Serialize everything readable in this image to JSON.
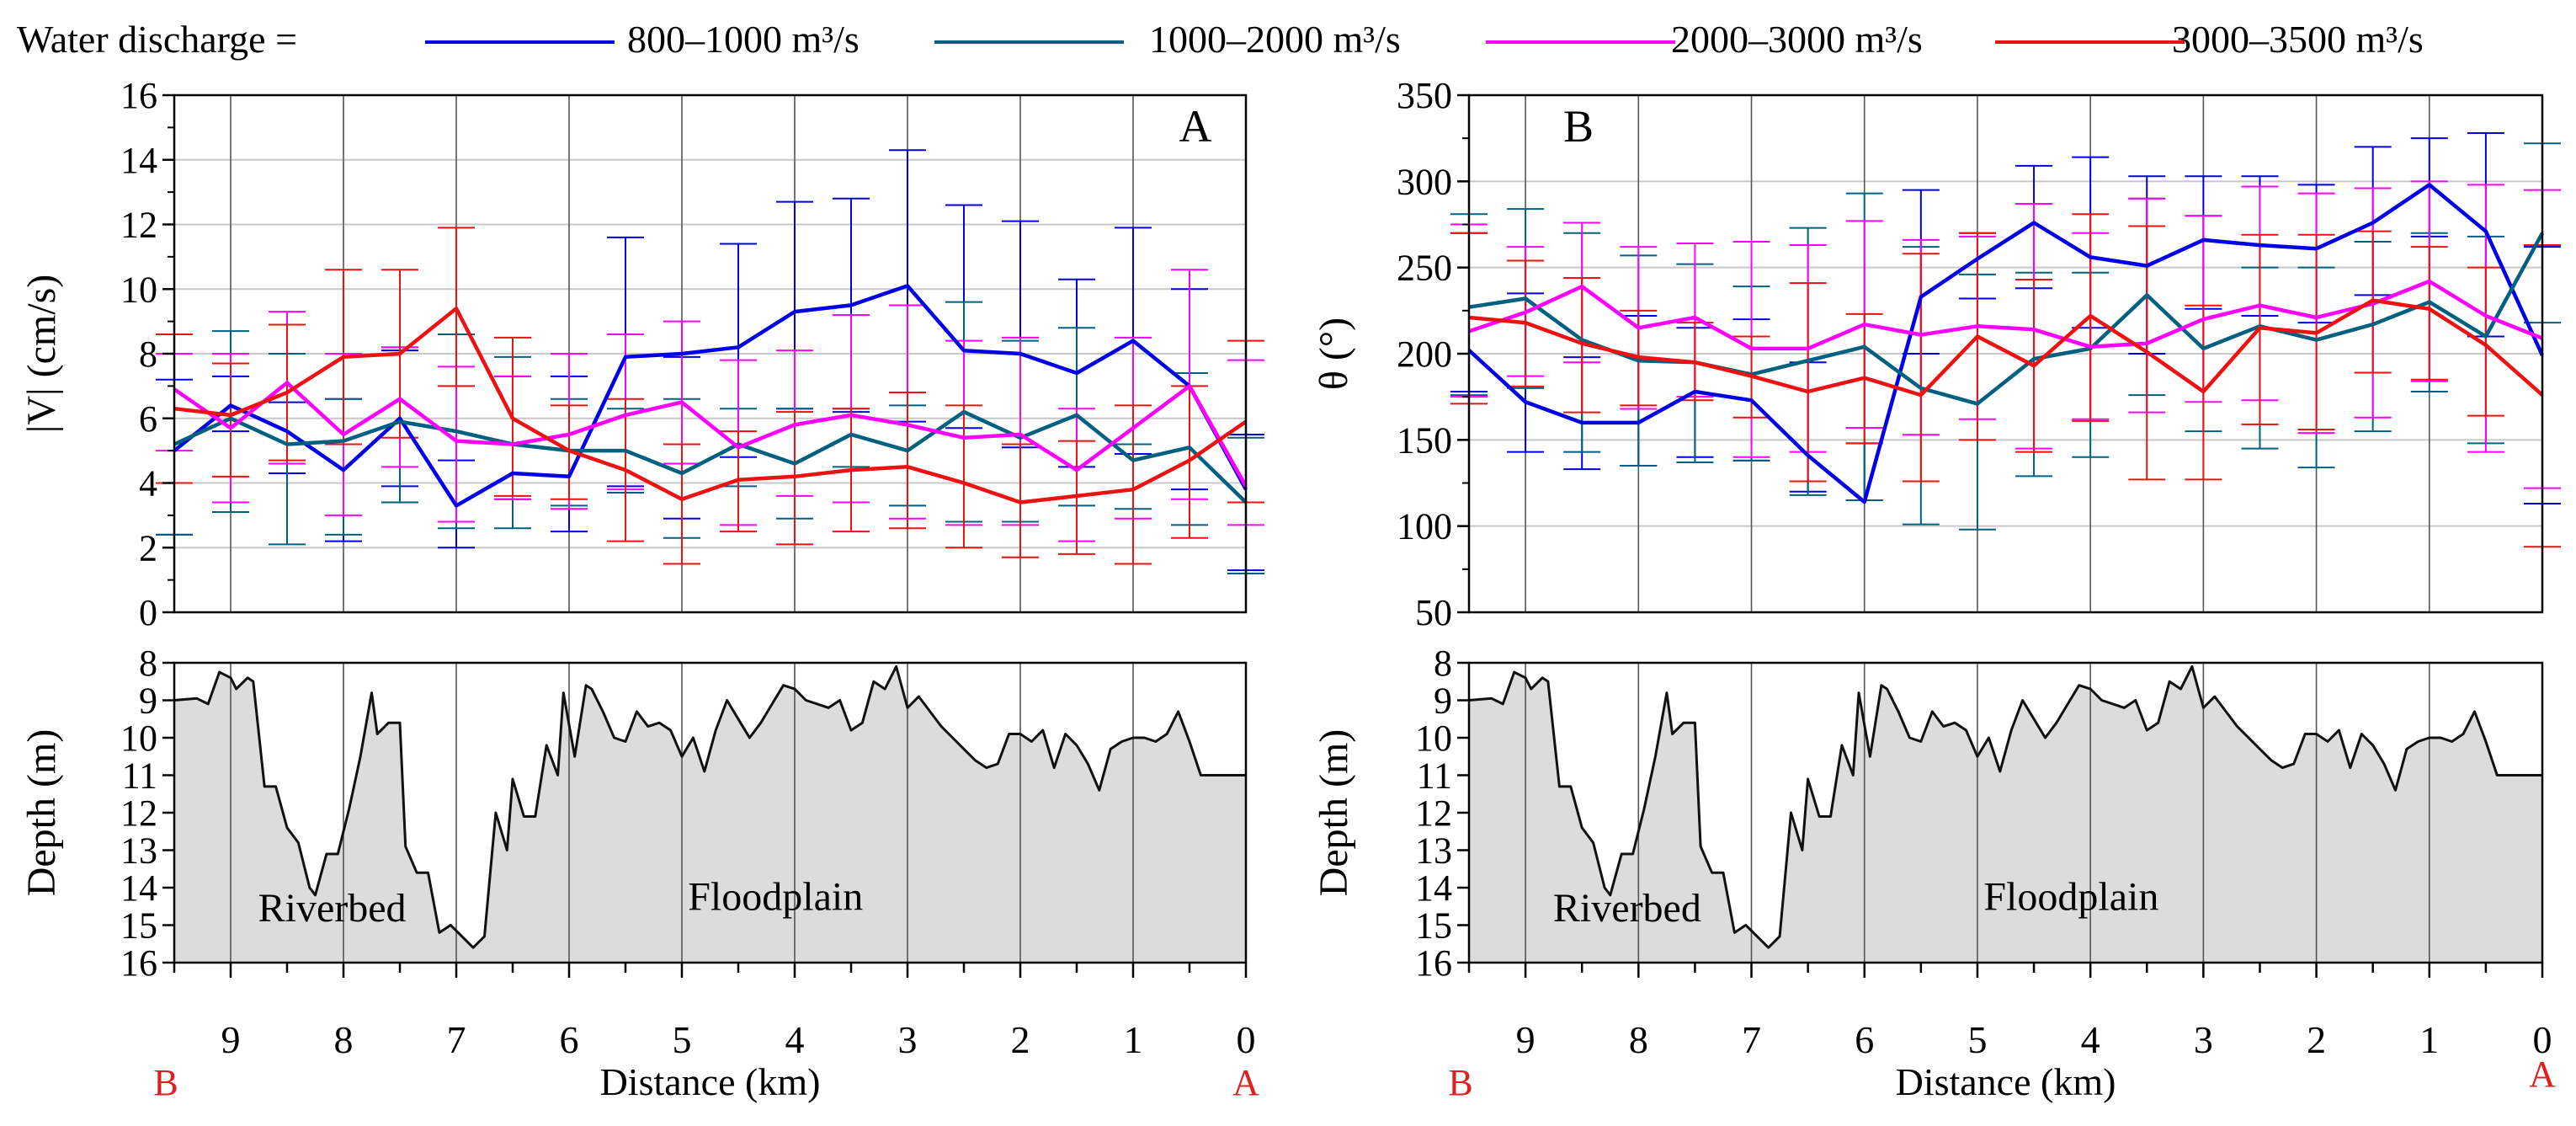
{
  "legend": {
    "prefix": "Water discharge  =",
    "entries": [
      {
        "label": "800–1000 m³/s",
        "color": "#0000e6"
      },
      {
        "label": "1000–2000 m³/s",
        "color": "#006080"
      },
      {
        "label": "2000–3000 m³/s",
        "color": "#ff00ff"
      },
      {
        "label": "3000–3500 m³/s",
        "color": "#ee1111"
      }
    ]
  },
  "chart_data": [
    {
      "type": "line",
      "panel_label": "A",
      "title": "",
      "xlabel": "",
      "ylabel": "|V| (cm/s)",
      "xlim": [
        9.5,
        0
      ],
      "ylim": [
        0,
        16
      ],
      "yticks": [
        "0",
        "2",
        "4",
        "6",
        "8",
        "10",
        "12",
        "14",
        "16"
      ],
      "x": [
        9.5,
        9.0,
        8.5,
        8.0,
        7.5,
        7.0,
        6.5,
        6.0,
        5.5,
        5.0,
        4.5,
        4.0,
        3.5,
        3.0,
        2.5,
        2.0,
        1.5,
        1.0,
        0.5,
        0.0
      ],
      "error_bars": true,
      "series": [
        {
          "name": "800–1000 m³/s",
          "color": "#0000e6",
          "values": [
            5.0,
            6.4,
            5.6,
            4.4,
            6.0,
            3.3,
            4.3,
            4.2,
            7.9,
            8.0,
            8.2,
            9.3,
            9.5,
            10.1,
            8.1,
            8.0,
            7.4,
            8.4,
            7.0,
            3.8
          ],
          "upper": [
            7.2,
            7.3,
            6.5,
            6.6,
            8.1,
            4.7,
            7.3,
            7.3,
            11.6,
            7.9,
            11.4,
            12.7,
            12.8,
            14.3,
            12.6,
            12.1,
            10.3,
            11.9,
            10.0,
            5.5
          ],
          "lower": [
            2.4,
            5.6,
            4.3,
            2.2,
            3.9,
            2.0,
            3.5,
            2.5,
            3.9,
            2.9,
            4.8,
            6.3,
            6.2,
            5.9,
            5.7,
            5.1,
            4.5,
            4.9,
            3.8,
            1.3
          ]
        },
        {
          "name": "1000–2000 m³/s",
          "color": "#006080",
          "values": [
            5.2,
            6.0,
            5.2,
            5.3,
            5.9,
            5.6,
            5.2,
            5.0,
            5.0,
            4.3,
            5.2,
            4.6,
            5.5,
            5.0,
            6.2,
            5.4,
            6.1,
            4.7,
            5.1,
            3.4
          ],
          "upper": [
            8.6,
            8.7,
            8.0,
            6.6,
            8.2,
            8.6,
            7.9,
            6.6,
            6.3,
            6.6,
            6.3,
            6.3,
            6.3,
            6.4,
            9.6,
            8.4,
            8.8,
            5.2,
            7.4,
            5.4
          ],
          "lower": [
            2.4,
            3.1,
            2.1,
            2.4,
            3.4,
            2.6,
            2.6,
            3.3,
            3.7,
            2.3,
            3.9,
            2.9,
            4.5,
            3.3,
            2.8,
            2.8,
            3.3,
            3.2,
            2.7,
            1.2
          ]
        },
        {
          "name": "2000–3000 m³/s",
          "color": "#ff00ff",
          "values": [
            6.9,
            5.7,
            7.1,
            5.5,
            6.6,
            5.3,
            5.2,
            5.5,
            6.1,
            6.5,
            5.1,
            5.8,
            6.1,
            5.8,
            5.4,
            5.5,
            4.4,
            5.7,
            7.0,
            3.9
          ],
          "upper": [
            8.0,
            8.0,
            9.3,
            8.0,
            8.2,
            7.6,
            7.3,
            8.0,
            8.6,
            9.0,
            7.8,
            8.1,
            9.2,
            9.5,
            8.4,
            8.5,
            6.3,
            8.5,
            10.6,
            7.8
          ],
          "lower": [
            5.0,
            3.4,
            4.6,
            3.0,
            4.5,
            2.8,
            3.5,
            3.2,
            3.8,
            4.6,
            2.7,
            3.6,
            3.4,
            2.9,
            2.7,
            2.7,
            2.2,
            2.9,
            3.5,
            2.7
          ]
        },
        {
          "name": "3000–3500 m³/s",
          "color": "#ee1111",
          "values": [
            6.3,
            6.1,
            6.8,
            7.9,
            8.0,
            9.4,
            6.0,
            5.0,
            4.4,
            3.5,
            4.1,
            4.2,
            4.4,
            4.5,
            4.0,
            3.4,
            3.6,
            3.8,
            4.7,
            5.9
          ],
          "upper": [
            8.6,
            7.7,
            8.9,
            10.6,
            10.6,
            11.9,
            8.5,
            6.4,
            6.6,
            5.2,
            5.6,
            6.2,
            6.3,
            6.8,
            6.4,
            5.2,
            5.3,
            6.4,
            7.0,
            8.4
          ],
          "lower": [
            4.0,
            4.2,
            4.7,
            5.2,
            5.4,
            7.0,
            3.6,
            3.5,
            2.2,
            1.5,
            2.5,
            2.1,
            2.5,
            2.6,
            2.0,
            1.7,
            1.8,
            1.5,
            2.3,
            3.4
          ]
        }
      ]
    },
    {
      "type": "line",
      "panel_label": "B",
      "title": "",
      "xlabel": "",
      "ylabel": "θ (°)",
      "xlim": [
        9.5,
        0
      ],
      "ylim": [
        50,
        350
      ],
      "yticks": [
        "50",
        "100",
        "150",
        "200",
        "250",
        "300",
        "350"
      ],
      "x": [
        9.5,
        9.0,
        8.5,
        8.0,
        7.5,
        7.0,
        6.5,
        6.0,
        5.5,
        5.0,
        4.5,
        4.0,
        3.5,
        3.0,
        2.5,
        2.0,
        1.5,
        1.0,
        0.5,
        0.0
      ],
      "error_bars": true,
      "series": [
        {
          "name": "800–1000 m³/s",
          "color": "#0000e6",
          "values": [
            202,
            172,
            160,
            160,
            178,
            173,
            141,
            114,
            233,
            255,
            276,
            256,
            251,
            266,
            263,
            261,
            276,
            298,
            271,
            199
          ],
          "upper": [
            270,
            235,
            198,
            222,
            215,
            220,
            195,
            148,
            295,
            270,
            309,
            314,
            303,
            303,
            303,
            298,
            320,
            325,
            328,
            262
          ],
          "lower": [
            178,
            143,
            133,
            135,
            140,
            138,
            120,
            115,
            200,
            232,
            238,
            215,
            200,
            226,
            222,
            218,
            234,
            268,
            210,
            113
          ]
        },
        {
          "name": "1000–2000 m³/s",
          "color": "#006080",
          "values": [
            227,
            232,
            208,
            196,
            195,
            188,
            196,
            204,
            180,
            171,
            197,
            203,
            234,
            203,
            216,
            208,
            217,
            230,
            210,
            270
          ],
          "upper": [
            281,
            284,
            270,
            257,
            252,
            239,
            273,
            293,
            262,
            246,
            247,
            247,
            290,
            280,
            250,
            250,
            265,
            270,
            268,
            322
          ],
          "lower": [
            176,
            180,
            143,
            135,
            137,
            138,
            118,
            115,
            101,
            98,
            129,
            140,
            176,
            155,
            145,
            134,
            155,
            178,
            148,
            218
          ]
        },
        {
          "name": "2000–3000 m³/s",
          "color": "#ff00ff",
          "values": [
            213,
            224,
            239,
            215,
            221,
            203,
            203,
            217,
            211,
            216,
            214,
            204,
            206,
            220,
            228,
            221,
            229,
            242,
            222,
            209
          ],
          "upper": [
            275,
            262,
            276,
            262,
            264,
            265,
            263,
            277,
            266,
            268,
            287,
            270,
            290,
            280,
            297,
            293,
            296,
            300,
            298,
            295
          ],
          "lower": [
            175,
            187,
            195,
            168,
            175,
            140,
            143,
            157,
            153,
            162,
            145,
            162,
            166,
            172,
            173,
            154,
            163,
            184,
            143,
            122
          ]
        },
        {
          "name": "3000–3500 m³/s",
          "color": "#ee1111",
          "values": [
            221,
            218,
            206,
            198,
            195,
            187,
            178,
            186,
            176,
            210,
            193,
            222,
            201,
            178,
            215,
            212,
            231,
            226,
            205,
            176
          ],
          "upper": [
            270,
            254,
            244,
            225,
            218,
            210,
            241,
            223,
            258,
            270,
            243,
            281,
            274,
            228,
            269,
            269,
            271,
            262,
            250,
            263
          ],
          "lower": [
            171,
            181,
            166,
            170,
            173,
            163,
            126,
            148,
            126,
            150,
            143,
            161,
            127,
            127,
            159,
            156,
            189,
            185,
            164,
            88
          ]
        }
      ]
    },
    {
      "type": "area",
      "panel_label": "",
      "title": "",
      "xlabel": "Distance (km)",
      "ylabel": "Depth (m)",
      "xlim": [
        9.5,
        0
      ],
      "ylim": [
        16,
        8
      ],
      "yticks": [
        "8",
        "9",
        "10",
        "11",
        "12",
        "13",
        "14",
        "15",
        "16"
      ],
      "xticks": [
        "9",
        "8",
        "7",
        "6",
        "5",
        "4",
        "3",
        "2",
        "1",
        "0"
      ],
      "end_labels": {
        "left": "B",
        "right": "A",
        "color": "#e02020"
      },
      "annotations": [
        {
          "text": "Riverbed",
          "x": 8.1,
          "y": 14.9
        },
        {
          "text": "Floodplain",
          "x": 4.17,
          "y": 14.6
        }
      ],
      "shared_by_both_panels": true,
      "x": [
        9.5,
        9.3,
        9.2,
        9.1,
        9.0,
        8.95,
        8.85,
        8.8,
        8.7,
        8.6,
        8.5,
        8.4,
        8.3,
        8.25,
        8.15,
        8.05,
        7.95,
        7.85,
        7.75,
        7.7,
        7.6,
        7.5,
        7.45,
        7.35,
        7.25,
        7.15,
        7.05,
        6.85,
        6.75,
        6.65,
        6.55,
        6.5,
        6.4,
        6.3,
        6.2,
        6.1,
        6.05,
        5.95,
        5.85,
        5.8,
        5.7,
        5.6,
        5.5,
        5.4,
        5.3,
        5.2,
        5.1,
        5.0,
        4.9,
        4.8,
        4.7,
        4.6,
        4.5,
        4.4,
        4.3,
        4.2,
        4.1,
        4.0,
        3.9,
        3.8,
        3.7,
        3.6,
        3.5,
        3.4,
        3.3,
        3.2,
        3.1,
        3.0,
        2.9,
        2.8,
        2.7,
        2.6,
        2.5,
        2.4,
        2.3,
        2.2,
        2.1,
        2.0,
        1.9,
        1.8,
        1.7,
        1.6,
        1.5,
        1.4,
        1.3,
        1.2,
        1.1,
        1.0,
        0.9,
        0.8,
        0.7,
        0.6,
        0.5,
        0.4,
        0.3,
        0.2,
        0.1,
        0.0
      ],
      "depth": [
        9.0,
        8.95,
        9.1,
        8.25,
        8.4,
        8.7,
        8.4,
        8.5,
        11.3,
        11.3,
        12.4,
        12.8,
        14.0,
        14.2,
        13.1,
        13.1,
        11.9,
        10.5,
        8.8,
        9.9,
        9.6,
        9.6,
        12.9,
        13.6,
        13.6,
        15.2,
        15.0,
        15.6,
        15.3,
        12.0,
        13.0,
        11.1,
        12.1,
        12.1,
        10.2,
        11.0,
        8.8,
        10.5,
        8.6,
        8.7,
        9.3,
        10.0,
        10.1,
        9.3,
        9.7,
        9.6,
        9.8,
        10.5,
        10.0,
        10.9,
        9.8,
        9.0,
        9.5,
        10.0,
        9.6,
        9.1,
        8.6,
        8.7,
        9.0,
        9.1,
        9.2,
        9.0,
        9.8,
        9.6,
        8.5,
        8.7,
        8.1,
        9.2,
        8.9,
        9.3,
        9.7,
        10.0,
        10.3,
        10.6,
        10.8,
        10.7,
        9.9,
        9.9,
        10.1,
        9.8,
        10.8,
        9.9,
        10.2,
        10.7,
        11.4,
        10.3,
        10.1,
        10.0,
        10.0,
        10.1,
        9.9,
        9.3,
        10.1,
        11.0,
        11.0,
        11.0,
        11.0,
        11.0
      ]
    }
  ]
}
